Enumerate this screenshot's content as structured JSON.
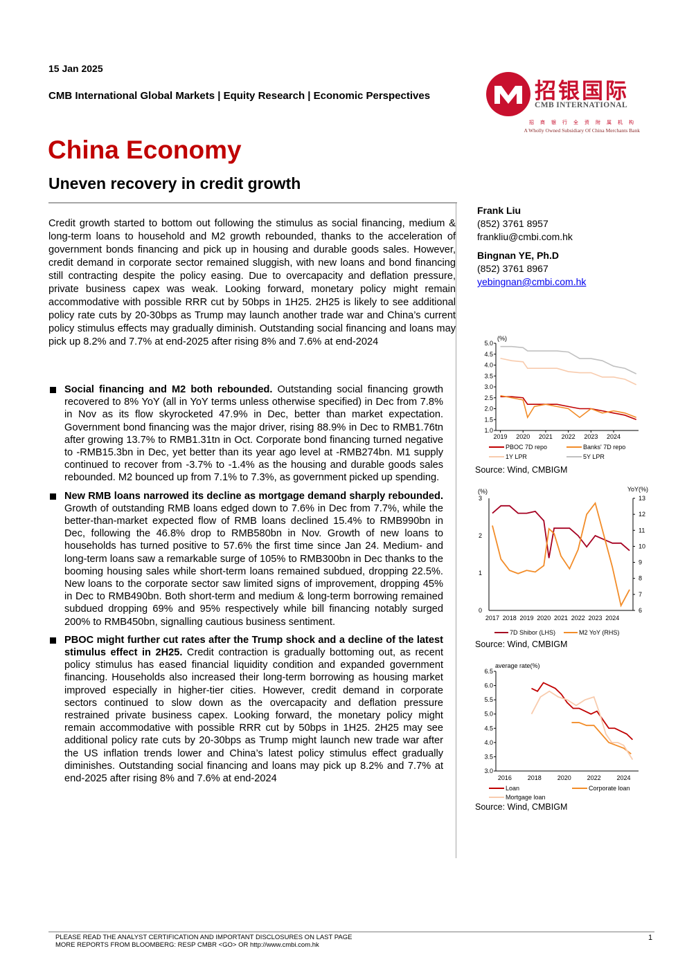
{
  "header": {
    "date": "15 Jan 2025",
    "series": "CMB International Global Markets | Equity Research | Economic Perspectives",
    "title": "China Economy",
    "subtitle": "Uneven recovery in credit growth"
  },
  "logo": {
    "cn": "招银国际",
    "en": "CMB INTERNATIONAL",
    "cn_sub": "招商银行全资附属机构",
    "en_sub": "A Wholly Owned Subsidiary Of China Merchants Bank",
    "colors": {
      "red": "#c8102e"
    }
  },
  "analysts": [
    {
      "name": "Frank Liu",
      "phone": "(852) 3761 8957",
      "email": "frankliu@cmbi.com.hk"
    },
    {
      "name": "Bingnan YE, Ph.D",
      "phone": "(852) 3761 8967",
      "email": "yebingnan@cmbi.com.hk"
    }
  ],
  "intro": "Credit growth started to bottom out following the stimulus as social financing, medium & long-term loans to household and M2 growth rebounded, thanks to the acceleration of government bonds financing and pick up in housing and durable goods sales. However, credit demand in corporate sector remained sluggish, with new loans and bond financing still contracting despite the policy easing. Due to overcapacity and deflation pressure, private business capex was weak. Looking forward, monetary policy might remain accommodative with possible RRR cut by 50bps in 1H25. 2H25 is likely to see additional policy rate cuts by 20-30bps as Trump may launch another trade war and China’s current policy stimulus effects may gradually diminish. Outstanding social financing and loans may pick up 8.2% and 7.7% at end-2025 after rising 8% and 7.6% at end-2024",
  "bullets": [
    {
      "head": "Social financing and M2 both rebounded.",
      "body": " Outstanding social financing growth recovered to 8% YoY (all in YoY terms unless otherwise specified) in Dec from 7.8% in Nov as its flow skyrocketed 47.9% in Dec, better than market expectation. Government bond financing was the major driver, rising 88.9% in Dec to RMB1.76tn after growing 13.7% to RMB1.31tn in Oct. Corporate bond financing turned negative to -RMB15.3bn in Dec, yet better than its year ago level at -RMB274bn. M1 supply continued to recover from -3.7% to -1.4% as the housing and durable goods sales rebounded. M2 bounced up from 7.1% to 7.3%, as government picked up spending."
    },
    {
      "head": "New RMB loans narrowed its decline as mortgage demand sharply rebounded.",
      "body": " Growth of outstanding RMB loans edged down to 7.6% in Dec from 7.7%, while the better-than-market expected flow of RMB loans declined 15.4% to RMB990bn in Dec, following the 46.8% drop to RMB580bn in Nov. Growth of new loans to households has turned positive to 57.6% the first time since Jan 24.  Medium- and long-term loans saw a remarkable surge of 105% to RMB300bn in Dec thanks to the booming housing sales while short-term loans remained subdued, dropping 22.5%. New loans to the corporate sector saw limited signs of improvement, dropping 45% in Dec to RMB490bn. Both short-term and medium & long-term borrowing remained subdued dropping 69% and 95% respectively while bill financing notably surged 200% to RMB450bn, signalling cautious business sentiment."
    },
    {
      "head": "PBOC might further cut rates after the Trump shock and a decline of the latest stimulus effect in 2H25.",
      "body": " Credit contraction is gradually bottoming out, as recent policy stimulus has eased financial liquidity condition and expanded government financing. Households also increased their long-term borrowing as housing market improved especially in higher-tier cities.  However, credit demand in corporate sectors continued to slow down as the overcapacity and deflation pressure restrained private business capex. Looking forward, the monetary policy might remain accommodative with possible RRR cut by 50bps in 1H25. 2H25 may see additional policy rate cuts by 20-30bps as Trump might launch new trade war after the US inflation trends lower and China’s latest policy stimulus effect gradually diminishes. Outstanding social financing and loans may pick up 8.2% and 7.7% at end-2025 after rising 8% and 7.6% at end-2024"
    }
  ],
  "chart_data": [
    {
      "type": "line",
      "ylabel": "(%)",
      "ylim": [
        1.0,
        5.0
      ],
      "yticks": [
        "5.0",
        "4.5",
        "4.0",
        "3.5",
        "3.0",
        "2.5",
        "2.0",
        "1.5",
        "1.0"
      ],
      "xticks": [
        "2019",
        "2020",
        "2021",
        "2022",
        "2023",
        "2024"
      ],
      "x": [
        2019.0,
        2019.5,
        2020.0,
        2020.2,
        2020.5,
        2021.0,
        2021.5,
        2022.0,
        2022.5,
        2023.0,
        2023.5,
        2024.0,
        2024.5,
        2025.0
      ],
      "series": [
        {
          "name": "PBOC 7D repo",
          "color": "#c00000",
          "values": [
            2.55,
            2.55,
            2.5,
            2.2,
            2.2,
            2.2,
            2.2,
            2.1,
            2.0,
            2.0,
            1.9,
            1.8,
            1.7,
            1.5
          ]
        },
        {
          "name": "Banks' 7D repo",
          "color": "#f28c28",
          "values": [
            2.6,
            2.5,
            2.4,
            1.6,
            2.1,
            2.2,
            2.1,
            2.0,
            1.6,
            2.0,
            1.8,
            1.9,
            1.8,
            1.6
          ]
        },
        {
          "name": "1Y LPR",
          "color": "#f8cbad",
          "values": [
            4.31,
            4.2,
            4.15,
            3.85,
            3.85,
            3.85,
            3.85,
            3.7,
            3.65,
            3.65,
            3.45,
            3.45,
            3.35,
            3.1
          ]
        },
        {
          "name": "5Y LPR",
          "color": "#c0c0c0",
          "values": [
            4.85,
            4.85,
            4.8,
            4.65,
            4.65,
            4.65,
            4.65,
            4.6,
            4.3,
            4.3,
            4.2,
            3.95,
            3.85,
            3.6
          ]
        }
      ],
      "source": "Source: Wind, CMBIGM"
    },
    {
      "type": "line",
      "ylabel_left": "(%)",
      "ylabel_right": "YoY(%)",
      "ylim_left": [
        0,
        3
      ],
      "ylim_right": [
        6,
        13
      ],
      "yticks_left": [
        "3",
        "2",
        "1",
        "0"
      ],
      "yticks_right": [
        "13",
        "12",
        "11",
        "10",
        "9",
        "8",
        "7",
        "6"
      ],
      "xticks": [
        "2017",
        "2018",
        "2019",
        "2020",
        "2021",
        "2022",
        "2023",
        "2024"
      ],
      "x": [
        2017.0,
        2017.5,
        2018.0,
        2018.5,
        2019.0,
        2019.5,
        2020.0,
        2020.3,
        2020.6,
        2021.0,
        2021.5,
        2022.0,
        2022.5,
        2023.0,
        2023.5,
        2024.0,
        2024.5,
        2025.0
      ],
      "series": [
        {
          "name": "7D Shibor (LHS)",
          "color": "#a50021",
          "axis": "left",
          "values": [
            2.6,
            2.8,
            2.8,
            2.6,
            2.6,
            2.65,
            2.4,
            1.4,
            2.2,
            2.2,
            2.2,
            2.0,
            1.7,
            2.0,
            1.9,
            1.8,
            1.8,
            1.6
          ]
        },
        {
          "name": "M2 YoY (RHS)",
          "color": "#f28c28",
          "axis": "right",
          "values": [
            11.3,
            9.2,
            8.5,
            8.3,
            8.5,
            8.4,
            8.8,
            11.1,
            10.8,
            9.4,
            8.6,
            9.8,
            12.0,
            12.7,
            10.7,
            8.7,
            6.3,
            7.3
          ]
        }
      ],
      "source": "Source: Wind, CMBIGM"
    },
    {
      "type": "line",
      "ylabel": "average rate(%)",
      "ylim": [
        3.0,
        6.5
      ],
      "yticks": [
        "6.5",
        "6.0",
        "5.5",
        "5.0",
        "4.5",
        "4.0",
        "3.5",
        "3.0"
      ],
      "xticks": [
        "2016",
        "2018",
        "2020",
        "2022",
        "2024"
      ],
      "series": [
        {
          "name": "Loan",
          "color": "#c00000",
          "x": [
            2017.8,
            2018.2,
            2018.6,
            2019.0,
            2019.4,
            2019.8,
            2020.2,
            2020.6,
            2021.0,
            2021.4,
            2021.8,
            2022.2,
            2022.6,
            2023.0,
            2023.4,
            2023.8,
            2024.2,
            2024.6
          ],
          "values": [
            5.9,
            5.8,
            6.1,
            6.0,
            5.9,
            5.7,
            5.4,
            5.2,
            5.2,
            5.1,
            5.0,
            5.1,
            4.8,
            4.5,
            4.5,
            4.4,
            4.3,
            4.1
          ]
        },
        {
          "name": "Corporate loan",
          "color": "#f28c28",
          "x": [
            2020.5,
            2021.0,
            2021.5,
            2022.0,
            2022.5,
            2023.0,
            2023.5,
            2024.0,
            2024.5
          ],
          "values": [
            4.7,
            4.7,
            4.6,
            4.6,
            4.3,
            4.0,
            3.9,
            3.8,
            3.6
          ]
        },
        {
          "name": "Mortgage loan",
          "color": "#f8cbad",
          "x": [
            2017.8,
            2018.4,
            2019.0,
            2019.6,
            2020.2,
            2020.8,
            2021.4,
            2022.0,
            2022.4,
            2022.8,
            2023.2,
            2023.6,
            2024.0,
            2024.6
          ],
          "values": [
            5.0,
            5.6,
            5.8,
            5.6,
            5.5,
            5.3,
            5.5,
            5.6,
            5.0,
            4.3,
            4.0,
            4.0,
            3.9,
            3.4
          ]
        }
      ],
      "source": "Source: Wind, CMBIGM"
    }
  ],
  "footer": {
    "line1": "PLEASE READ THE ANALYST CERTIFICATION AND IMPORTANT DISCLOSURES ON LAST PAGE",
    "line2": "MORE REPORTS FROM BLOOMBERG: RESP CMBR <GO> OR http://www.cmbi.com.hk",
    "page": "1"
  }
}
